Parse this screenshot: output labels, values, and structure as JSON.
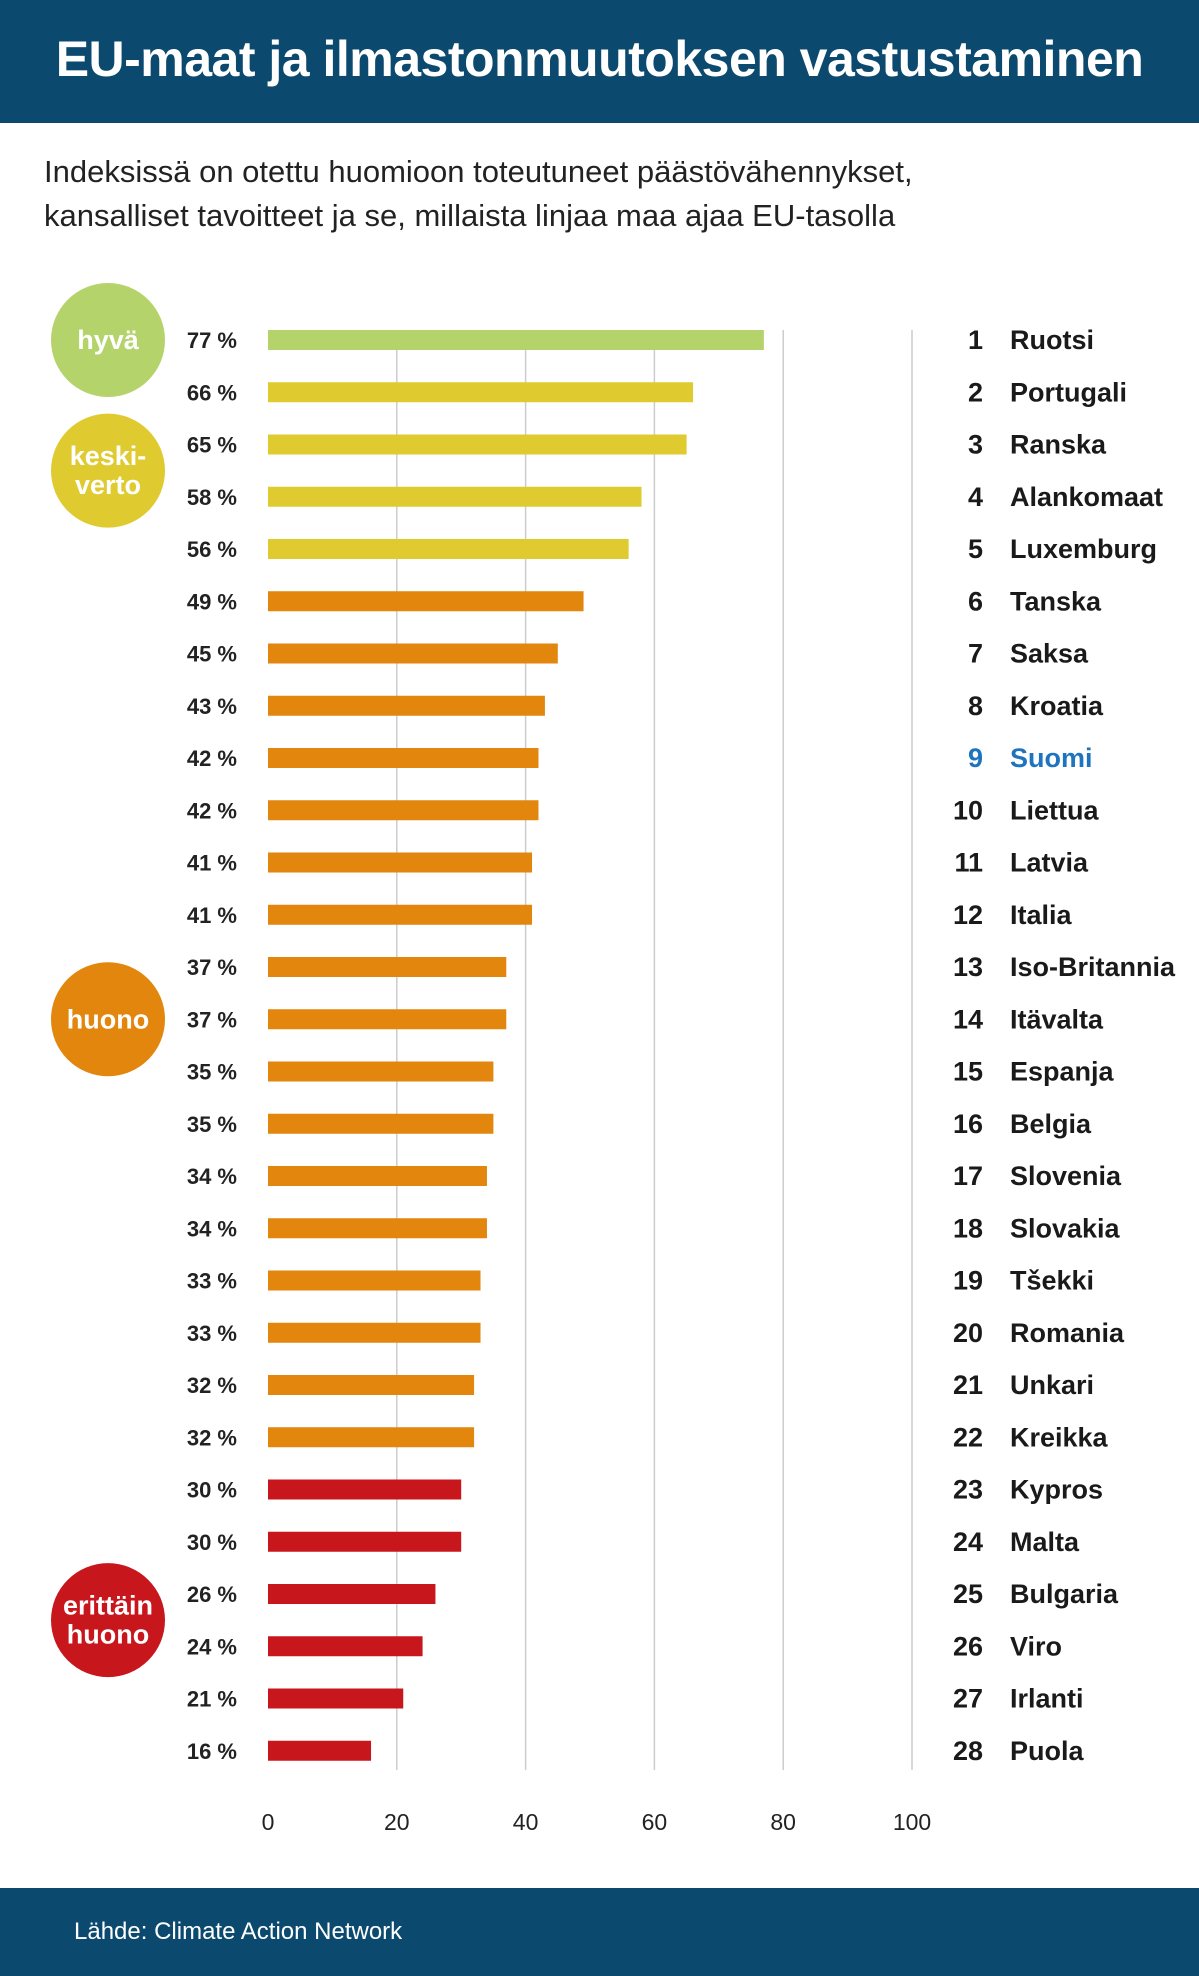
{
  "header": {
    "title": "EU-maat ja ilmastonmuutoksen vastustaminen"
  },
  "subtitle": {
    "line1": "Indeksissä on otettu huomioon toteutuneet päästövähennykset,",
    "line2": "kansalliset tavoitteet ja se, millaista linjaa maa ajaa EU-tasolla"
  },
  "footer": {
    "source": "Lähde: Climate Action Network"
  },
  "colors": {
    "hyva": "#b5d36b",
    "keskiverto": "#dfcb2f",
    "huono": "#e2860e",
    "erittain_huono": "#c8161d",
    "highlight": "#1e74be",
    "header_bg": "#0b4a6e",
    "grid": "#cccccc"
  },
  "categories": [
    {
      "key": "hyva",
      "lines": [
        "hyvä"
      ],
      "color": "#b5d36b"
    },
    {
      "key": "keskiverto",
      "lines": [
        "keski-",
        "verto"
      ],
      "color": "#dfcb2f"
    },
    {
      "key": "huono",
      "lines": [
        "huono"
      ],
      "color": "#e2860e"
    },
    {
      "key": "erittain_huono",
      "lines": [
        "erittäin",
        "huono"
      ],
      "color": "#c8161d"
    }
  ],
  "chart_data": {
    "type": "bar",
    "orientation": "horizontal",
    "xlim": [
      0,
      100
    ],
    "x_ticks": [
      0,
      20,
      40,
      60,
      80,
      100
    ],
    "value_suffix": " %",
    "highlighted": "Suomi",
    "grid": true,
    "rows": [
      {
        "rank": 1,
        "country": "Ruotsi",
        "value": 77,
        "category": "hyva"
      },
      {
        "rank": 2,
        "country": "Portugali",
        "value": 66,
        "category": "keskiverto"
      },
      {
        "rank": 3,
        "country": "Ranska",
        "value": 65,
        "category": "keskiverto"
      },
      {
        "rank": 4,
        "country": "Alankomaat",
        "value": 58,
        "category": "keskiverto"
      },
      {
        "rank": 5,
        "country": "Luxemburg",
        "value": 56,
        "category": "keskiverto"
      },
      {
        "rank": 6,
        "country": "Tanska",
        "value": 49,
        "category": "huono"
      },
      {
        "rank": 7,
        "country": "Saksa",
        "value": 45,
        "category": "huono"
      },
      {
        "rank": 8,
        "country": "Kroatia",
        "value": 43,
        "category": "huono"
      },
      {
        "rank": 9,
        "country": "Suomi",
        "value": 42,
        "category": "huono"
      },
      {
        "rank": 10,
        "country": "Liettua",
        "value": 42,
        "category": "huono"
      },
      {
        "rank": 11,
        "country": "Latvia",
        "value": 41,
        "category": "huono"
      },
      {
        "rank": 12,
        "country": "Italia",
        "value": 41,
        "category": "huono"
      },
      {
        "rank": 13,
        "country": "Iso-Britannia",
        "value": 37,
        "category": "huono"
      },
      {
        "rank": 14,
        "country": "Itävalta",
        "value": 37,
        "category": "huono"
      },
      {
        "rank": 15,
        "country": "Espanja",
        "value": 35,
        "category": "huono"
      },
      {
        "rank": 16,
        "country": "Belgia",
        "value": 35,
        "category": "huono"
      },
      {
        "rank": 17,
        "country": "Slovenia",
        "value": 34,
        "category": "huono"
      },
      {
        "rank": 18,
        "country": "Slovakia",
        "value": 34,
        "category": "huono"
      },
      {
        "rank": 19,
        "country": "Tšekki",
        "value": 33,
        "category": "huono"
      },
      {
        "rank": 20,
        "country": "Romania",
        "value": 33,
        "category": "huono"
      },
      {
        "rank": 21,
        "country": "Unkari",
        "value": 32,
        "category": "huono"
      },
      {
        "rank": 22,
        "country": "Kreikka",
        "value": 32,
        "category": "huono"
      },
      {
        "rank": 23,
        "country": "Kypros",
        "value": 30,
        "category": "erittain_huono"
      },
      {
        "rank": 24,
        "country": "Malta",
        "value": 30,
        "category": "erittain_huono"
      },
      {
        "rank": 25,
        "country": "Bulgaria",
        "value": 26,
        "category": "erittain_huono"
      },
      {
        "rank": 26,
        "country": "Viro",
        "value": 24,
        "category": "erittain_huono"
      },
      {
        "rank": 27,
        "country": "Irlanti",
        "value": 21,
        "category": "erittain_huono"
      },
      {
        "rank": 28,
        "country": "Puola",
        "value": 16,
        "category": "erittain_huono"
      }
    ]
  }
}
